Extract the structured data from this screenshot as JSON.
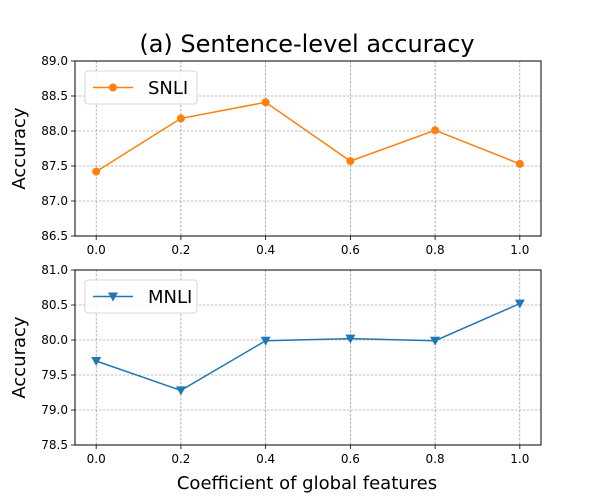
{
  "title": "(a) Sentence-level accuracy",
  "xlabel": "Coefficient of global features",
  "chart_data": [
    {
      "type": "line",
      "title": "(a) Sentence-level accuracy",
      "xlabel": "",
      "ylabel": "Accuracy",
      "x": [
        0.0,
        0.2,
        0.4,
        0.6,
        0.8,
        1.0
      ],
      "x_tick_labels": [
        "0.0",
        "0.2",
        "0.4",
        "0.6",
        "0.8",
        "1.0"
      ],
      "xlim": [
        -0.05,
        1.05
      ],
      "ylim": [
        86.5,
        89.0
      ],
      "y_ticks": [
        86.5,
        87.0,
        87.5,
        88.0,
        88.5,
        89.0
      ],
      "y_tick_labels": [
        "86.5",
        "87.0",
        "87.5",
        "88.0",
        "88.5",
        "89.0"
      ],
      "grid": true,
      "legend_position": "top-left",
      "series": [
        {
          "name": "SNLI",
          "color": "#ff7f0e",
          "marker": "circle",
          "values": [
            87.42,
            88.18,
            88.41,
            87.57,
            88.01,
            87.53
          ]
        }
      ]
    },
    {
      "type": "line",
      "title": "",
      "xlabel": "Coefficient of global features",
      "ylabel": "Accuracy",
      "x": [
        0.0,
        0.2,
        0.4,
        0.6,
        0.8,
        1.0
      ],
      "x_tick_labels": [
        "0.0",
        "0.2",
        "0.4",
        "0.6",
        "0.8",
        "1.0"
      ],
      "xlim": [
        -0.05,
        1.05
      ],
      "ylim": [
        78.5,
        81.0
      ],
      "y_ticks": [
        78.5,
        79.0,
        79.5,
        80.0,
        80.5,
        81.0
      ],
      "y_tick_labels": [
        "78.5",
        "79.0",
        "79.5",
        "80.0",
        "80.5",
        "81.0"
      ],
      "grid": true,
      "legend_position": "top-left",
      "series": [
        {
          "name": "MNLI",
          "color": "#1f77b4",
          "marker": "triangle-down",
          "values": [
            79.7,
            79.28,
            79.99,
            80.02,
            79.99,
            80.52
          ]
        }
      ]
    }
  ]
}
